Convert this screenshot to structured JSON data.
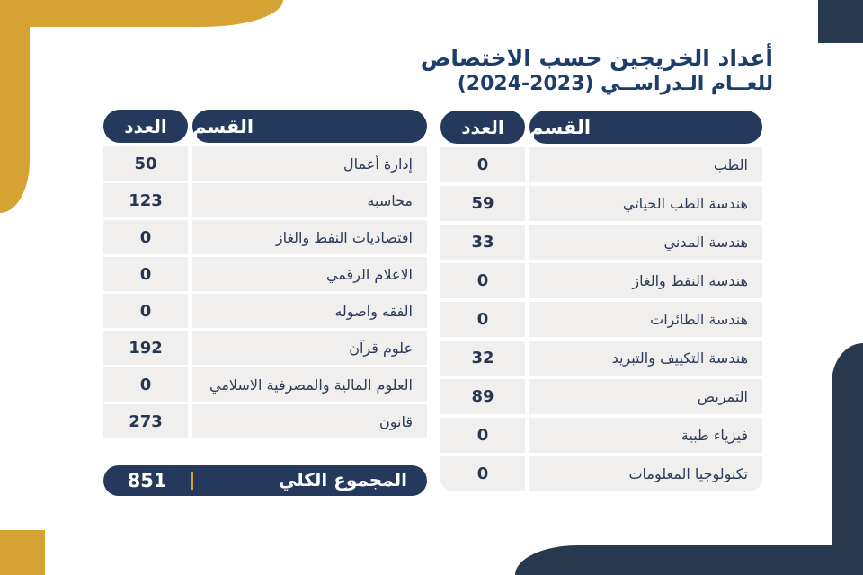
{
  "title": {
    "line1": "أعداد الخريجين حسب الاختصاص",
    "line2": "للعــام الـدراســي (2023-2024)"
  },
  "chart_data": [
    {
      "type": "table",
      "position": "right",
      "columns": [
        "القسم",
        "العدد"
      ],
      "rows": [
        [
          "الطب",
          "0"
        ],
        [
          "هندسة الطب الحياتي",
          "59"
        ],
        [
          "هندسة المدني",
          "33"
        ],
        [
          "هندسة النفط والغاز",
          "0"
        ],
        [
          "هندسة الطائرات",
          "0"
        ],
        [
          "هندسة التكييف والتبريد",
          "32"
        ],
        [
          "التمريض",
          "89"
        ],
        [
          "فيزياء طبية",
          "0"
        ],
        [
          "تكنولوجيا المعلومات",
          "0"
        ]
      ]
    },
    {
      "type": "table",
      "position": "left",
      "columns": [
        "القسم",
        "العدد"
      ],
      "rows": [
        [
          "إدارة أعمال",
          "50"
        ],
        [
          "محاسبة",
          "123"
        ],
        [
          "اقتصاديات النفط والغاز",
          "0"
        ],
        [
          "الاعلام الرقمي",
          "0"
        ],
        [
          "الفقه واصوله",
          "0"
        ],
        [
          "علوم قرآن",
          "192"
        ],
        [
          "العلوم المالية والمصرفية الاسلامي",
          "0"
        ],
        [
          "قانون",
          "273"
        ]
      ],
      "total": {
        "label": "المجموع الكلي",
        "value": "851"
      }
    }
  ],
  "colors": {
    "navy": "#24395B",
    "navy_deco": "#28394F",
    "gold": "#D7A234",
    "row_bg": "#F0EFEE",
    "title_blue": "#1D3E6B"
  }
}
